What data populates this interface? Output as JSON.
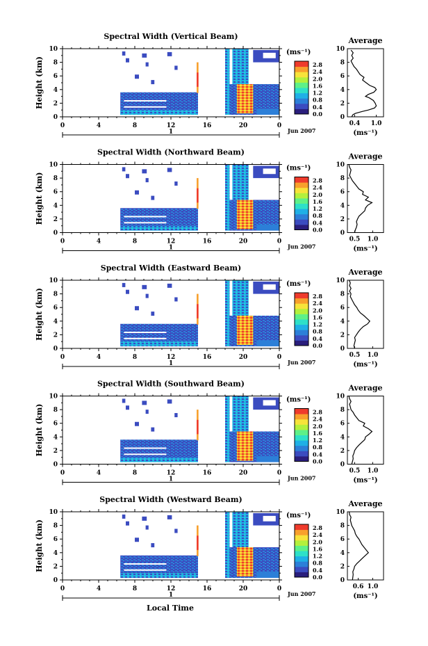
{
  "chart_data": {
    "type": "heatmap",
    "xlabel": "Local Time",
    "date_label": "Jun 2007",
    "day_label": "1",
    "x_ticks": [
      "0",
      "4",
      "8",
      "12",
      "16",
      "20",
      "0"
    ],
    "xlim": [
      0,
      24
    ],
    "ylabel": "Height (km)",
    "y_ticks": [
      "0",
      "2",
      "4",
      "6",
      "8",
      "10"
    ],
    "ylim": [
      0,
      10
    ],
    "colorbar": {
      "unit": "(ms⁻¹)",
      "ticks": [
        "2.8",
        "2.4",
        "2.0",
        "1.6",
        "1.2",
        "0.8",
        "0.4",
        "0.0"
      ],
      "range": [
        0,
        3.0
      ],
      "colors": [
        "#2a1e7c",
        "#3b4cc0",
        "#2c7fd8",
        "#1fb0e6",
        "#2ee0c8",
        "#5ef088",
        "#b4f03c",
        "#f7e33a",
        "#f8a02c",
        "#ef3b2c"
      ]
    },
    "profile": {
      "title": "Average",
      "unit": "(ms⁻¹)"
    },
    "panels": [
      {
        "title": "Spectral Width (Vertical Beam)",
        "profile_x_ticks": [
          "0.4",
          "1.0"
        ],
        "profile_xlim": [
          0.2,
          1.2
        ],
        "profile": [
          [
            0.0,
            0.32
          ],
          [
            0.3,
            0.35
          ],
          [
            0.5,
            0.42
          ],
          [
            0.8,
            0.62
          ],
          [
            1.0,
            0.78
          ],
          [
            1.3,
            0.95
          ],
          [
            1.6,
            1.0
          ],
          [
            2.0,
            0.97
          ],
          [
            2.4,
            0.92
          ],
          [
            2.8,
            0.8
          ],
          [
            3.0,
            0.7
          ],
          [
            3.3,
            0.78
          ],
          [
            3.6,
            0.93
          ],
          [
            4.0,
            1.0
          ],
          [
            4.3,
            0.96
          ],
          [
            4.6,
            0.82
          ],
          [
            5.0,
            0.72
          ],
          [
            5.4,
            0.62
          ],
          [
            5.8,
            0.66
          ],
          [
            6.2,
            0.55
          ],
          [
            6.6,
            0.5
          ],
          [
            7.0,
            0.45
          ],
          [
            7.4,
            0.38
          ],
          [
            7.8,
            0.34
          ],
          [
            8.2,
            0.3
          ],
          [
            8.6,
            0.36
          ],
          [
            9.0,
            0.32
          ],
          [
            9.4,
            0.36
          ],
          [
            9.8,
            0.3
          ]
        ]
      },
      {
        "title": "Spectral Width (Northward Beam)",
        "profile_x_ticks": [
          "0.5",
          "1.0"
        ],
        "profile_xlim": [
          0.3,
          1.3
        ],
        "profile": [
          [
            0.0,
            0.5
          ],
          [
            0.4,
            0.52
          ],
          [
            0.8,
            0.55
          ],
          [
            1.2,
            0.57
          ],
          [
            1.6,
            0.55
          ],
          [
            2.0,
            0.58
          ],
          [
            2.4,
            0.62
          ],
          [
            2.8,
            0.7
          ],
          [
            3.2,
            0.78
          ],
          [
            3.6,
            0.8
          ],
          [
            4.0,
            0.86
          ],
          [
            4.4,
            0.98
          ],
          [
            4.8,
            0.8
          ],
          [
            5.2,
            0.88
          ],
          [
            5.6,
            0.72
          ],
          [
            6.0,
            0.74
          ],
          [
            6.4,
            0.62
          ],
          [
            6.8,
            0.56
          ],
          [
            7.2,
            0.5
          ],
          [
            7.6,
            0.44
          ],
          [
            8.0,
            0.4
          ],
          [
            8.4,
            0.36
          ],
          [
            8.8,
            0.38
          ],
          [
            9.2,
            0.4
          ],
          [
            9.6,
            0.36
          ],
          [
            10.0,
            0.34
          ]
        ]
      },
      {
        "title": "Spectral Width (Eastward Beam)",
        "profile_x_ticks": [
          "0.5",
          "1.0"
        ],
        "profile_xlim": [
          0.3,
          1.3
        ],
        "profile": [
          [
            0.0,
            0.5
          ],
          [
            0.4,
            0.48
          ],
          [
            0.8,
            0.5
          ],
          [
            1.2,
            0.52
          ],
          [
            1.6,
            0.5
          ],
          [
            2.0,
            0.55
          ],
          [
            2.4,
            0.6
          ],
          [
            2.8,
            0.66
          ],
          [
            3.2,
            0.74
          ],
          [
            3.6,
            0.86
          ],
          [
            4.0,
            0.92
          ],
          [
            4.4,
            0.84
          ],
          [
            4.8,
            0.76
          ],
          [
            5.2,
            0.66
          ],
          [
            5.6,
            0.6
          ],
          [
            6.0,
            0.56
          ],
          [
            6.4,
            0.5
          ],
          [
            6.8,
            0.46
          ],
          [
            7.2,
            0.42
          ],
          [
            7.6,
            0.38
          ],
          [
            8.0,
            0.4
          ],
          [
            8.4,
            0.36
          ],
          [
            8.8,
            0.4
          ],
          [
            9.2,
            0.36
          ],
          [
            9.6,
            0.38
          ],
          [
            10.0,
            0.35
          ]
        ]
      },
      {
        "title": "Spectral Width (Southward Beam)",
        "profile_x_ticks": [
          "0.5",
          "1.0"
        ],
        "profile_xlim": [
          0.3,
          1.3
        ],
        "profile": [
          [
            0.0,
            0.42
          ],
          [
            0.4,
            0.44
          ],
          [
            0.8,
            0.46
          ],
          [
            1.2,
            0.45
          ],
          [
            1.6,
            0.48
          ],
          [
            2.0,
            0.5
          ],
          [
            2.4,
            0.55
          ],
          [
            2.8,
            0.62
          ],
          [
            3.2,
            0.7
          ],
          [
            3.6,
            0.78
          ],
          [
            4.0,
            0.8
          ],
          [
            4.4,
            0.9
          ],
          [
            4.8,
            0.98
          ],
          [
            5.2,
            0.88
          ],
          [
            5.6,
            0.74
          ],
          [
            6.0,
            0.78
          ],
          [
            6.4,
            0.62
          ],
          [
            6.8,
            0.56
          ],
          [
            7.2,
            0.5
          ],
          [
            7.6,
            0.46
          ],
          [
            8.0,
            0.4
          ],
          [
            8.4,
            0.38
          ],
          [
            8.8,
            0.36
          ],
          [
            9.2,
            0.4
          ],
          [
            9.6,
            0.36
          ],
          [
            10.0,
            0.34
          ]
        ]
      },
      {
        "title": "Spectral Width (Westward Beam)",
        "profile_x_ticks": [
          "0.6",
          "1.0"
        ],
        "profile_xlim": [
          0.3,
          1.3
        ],
        "profile": [
          [
            0.0,
            0.44
          ],
          [
            0.4,
            0.45
          ],
          [
            0.8,
            0.46
          ],
          [
            1.2,
            0.45
          ],
          [
            1.6,
            0.48
          ],
          [
            2.0,
            0.5
          ],
          [
            2.4,
            0.56
          ],
          [
            2.8,
            0.64
          ],
          [
            3.2,
            0.72
          ],
          [
            3.6,
            0.8
          ],
          [
            4.0,
            0.88
          ],
          [
            4.4,
            0.82
          ],
          [
            4.8,
            0.76
          ],
          [
            5.2,
            0.7
          ],
          [
            5.6,
            0.66
          ],
          [
            6.0,
            0.62
          ],
          [
            6.4,
            0.56
          ],
          [
            6.8,
            0.52
          ],
          [
            7.2,
            0.5
          ],
          [
            7.6,
            0.46
          ],
          [
            8.0,
            0.42
          ],
          [
            8.4,
            0.4
          ],
          [
            8.8,
            0.38
          ],
          [
            9.2,
            0.4
          ],
          [
            9.6,
            0.36
          ],
          [
            10.0,
            0.35
          ]
        ]
      }
    ]
  }
}
